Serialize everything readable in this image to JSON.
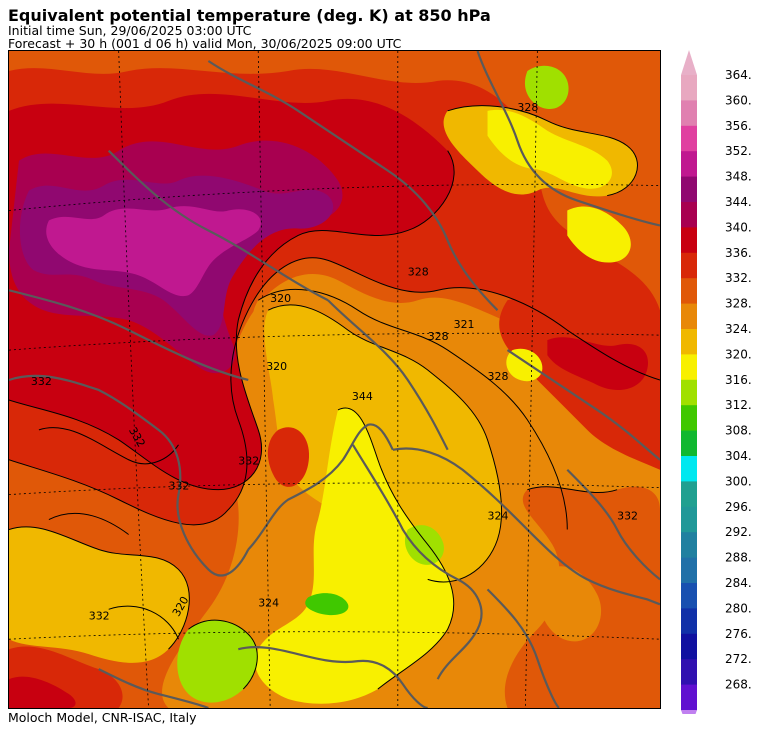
{
  "header": {
    "title": "Equivalent potential temperature (deg. K) at 850 hPa",
    "initial_time": "Initial time  Sun, 29/06/2025  03:00 UTC",
    "forecast": "Forecast  +  30 h  (001 d 06 h)  valid Mon, 30/06/2025  09:00 UTC"
  },
  "footer": {
    "credit": "Moloch Model, CNR-ISAC, Italy"
  },
  "legend": {
    "levels": [
      {
        "value": "364.",
        "color": "#e8a8c0"
      },
      {
        "value": "360.",
        "color": "#e080b0"
      },
      {
        "value": "356.",
        "color": "#e040a0"
      },
      {
        "value": "352.",
        "color": "#c01890"
      },
      {
        "value": "348.",
        "color": "#900870"
      },
      {
        "value": "344.",
        "color": "#a80050"
      },
      {
        "value": "340.",
        "color": "#c80010"
      },
      {
        "value": "336.",
        "color": "#d82808"
      },
      {
        "value": "332.",
        "color": "#e05808"
      },
      {
        "value": "328.",
        "color": "#e88808"
      },
      {
        "value": "324.",
        "color": "#f0b800"
      },
      {
        "value": "320.",
        "color": "#f8f000"
      },
      {
        "value": "316.",
        "color": "#a0e000"
      },
      {
        "value": "312.",
        "color": "#40c800"
      },
      {
        "value": "308.",
        "color": "#10b830"
      },
      {
        "value": "304.",
        "color": "#00e8f0"
      },
      {
        "value": "300.",
        "color": "#20a090"
      },
      {
        "value": "296.",
        "color": "#209898"
      },
      {
        "value": "292.",
        "color": "#2080a0"
      },
      {
        "value": "288.",
        "color": "#2070a8"
      },
      {
        "value": "284.",
        "color": "#1850b0"
      },
      {
        "value": "280.",
        "color": "#1030a8"
      },
      {
        "value": "276.",
        "color": "#1010a0"
      },
      {
        "value": "272.",
        "color": "#3010b0"
      },
      {
        "value": "268.",
        "color": "#6010d0"
      }
    ],
    "top_arrow_color": "#e8b0c8",
    "bottom_arrow_color": "#c080f0"
  },
  "map": {
    "contour_labels": [
      "328",
      "332",
      "332",
      "332",
      "320",
      "320",
      "324",
      "328",
      "321",
      "328",
      "320",
      "344",
      "332",
      "324",
      "332",
      "328",
      "332"
    ]
  }
}
